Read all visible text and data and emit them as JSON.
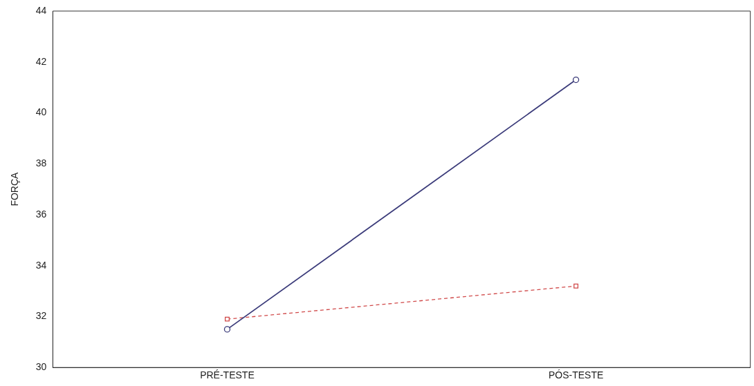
{
  "chart_data": {
    "type": "line",
    "ylabel": "FORÇA",
    "categories": [
      "PRÉ-TESTE",
      "PÓS-TESTE"
    ],
    "series": [
      {
        "color": "#3b3b7a",
        "values": [
          31.5,
          41.3
        ],
        "marker": "circle",
        "line_style": "solid"
      },
      {
        "color": "#d04848",
        "values": [
          31.9,
          33.2
        ],
        "marker": "square",
        "line_style": "dashed"
      }
    ],
    "ylim": [
      30,
      44
    ],
    "yticks": [
      30,
      32,
      34,
      36,
      38,
      40,
      42,
      44
    ],
    "grid": false,
    "legend": false
  }
}
